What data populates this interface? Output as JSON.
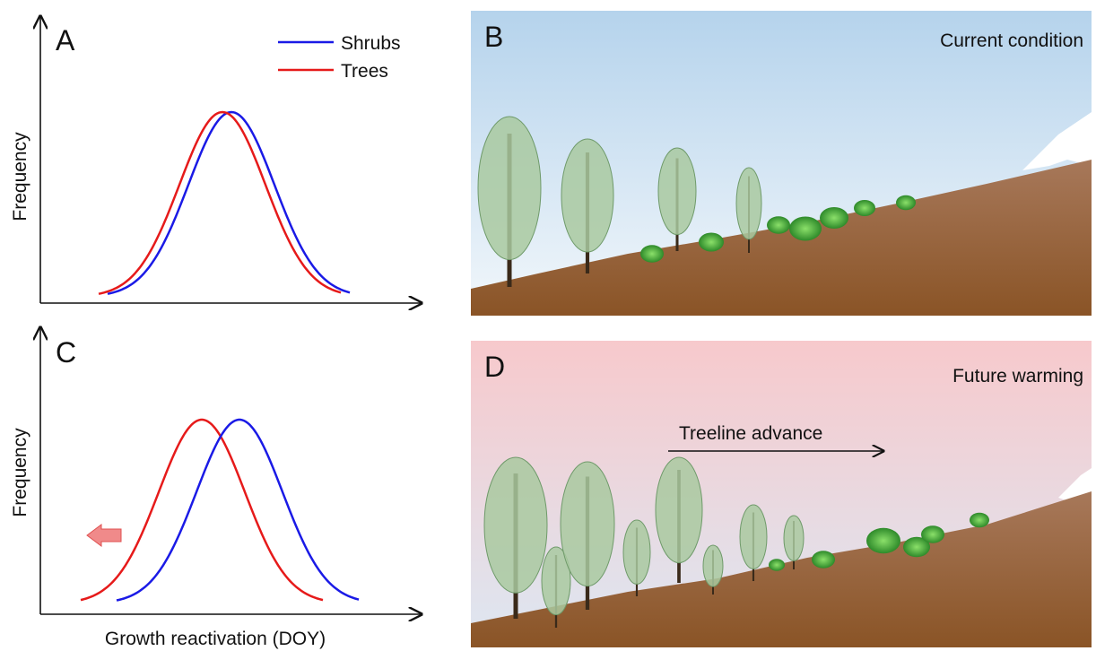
{
  "panels": {
    "A": {
      "label": "A",
      "y_label": "Frequency",
      "legend": [
        {
          "name": "Shrubs",
          "color": "#1a1ae6"
        },
        {
          "name": "Trees",
          "color": "#e61a1a"
        }
      ]
    },
    "B": {
      "label": "B",
      "title": "Current condition"
    },
    "C": {
      "label": "C",
      "y_label": "Frequency",
      "x_label": "Growth reactivation (DOY)"
    },
    "D": {
      "label": "D",
      "title": "Future warming",
      "annotation": "Treeline advance"
    }
  }
}
